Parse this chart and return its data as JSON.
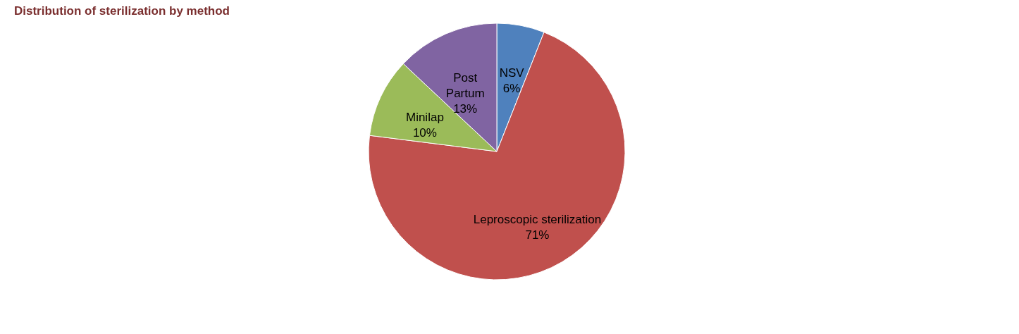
{
  "chart_data": {
    "type": "pie",
    "title": "Distribution of sterilization by method",
    "categories": [
      "NSV",
      "Leproscopic sterilization",
      "Minilap",
      "Post Partum"
    ],
    "values": [
      6,
      71,
      10,
      13
    ],
    "colors": [
      "#4f81bd",
      "#c0504d",
      "#9bbb59",
      "#8064a2"
    ],
    "value_labels": [
      "6%",
      "71%",
      "10%",
      "13%"
    ],
    "legend": false
  }
}
